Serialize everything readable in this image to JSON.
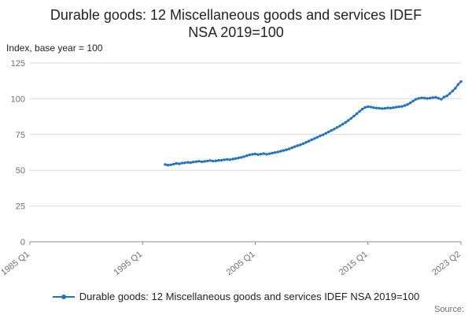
{
  "title": {
    "line1": "Durable goods: 12 Miscellaneous goods and services IDEF",
    "line2": "NSA 2019=100"
  },
  "y_axis_unit": "Index, base year = 100",
  "legend": "Durable goods: 12 Miscellaneous goods and services IDEF NSA 2019=100",
  "source_label": "Source:",
  "colors": {
    "line": "#2073bc",
    "grid": "#d9d9d9",
    "axis": "#8c8c8c",
    "tick_text": "#707071",
    "title_text": "#222222"
  },
  "chart_data": {
    "type": "line",
    "title": "Durable goods: 12 Miscellaneous goods and services IDEF NSA 2019=100",
    "xlabel": "",
    "ylabel": "Index, base year = 100",
    "ylim": [
      0,
      125
    ],
    "yticks": [
      0,
      25,
      50,
      75,
      100,
      125
    ],
    "grid": "horizontal",
    "legend_position": "bottom",
    "x_axis": {
      "start": "1985 Q1",
      "end": "2023 Q2",
      "total_quarters": 153,
      "ticks": [
        {
          "label": "1985 Q1",
          "q": 0
        },
        {
          "label": "1995 Q1",
          "q": 40
        },
        {
          "label": "2005 Q1",
          "q": 80
        },
        {
          "label": "2015 Q1",
          "q": 120
        },
        {
          "label": "2023 Q2",
          "q": 153
        }
      ]
    },
    "series": [
      {
        "name": "Durable goods: 12 Miscellaneous goods and services IDEF NSA 2019=100",
        "frequency": "quarterly",
        "start": "1997 Q1",
        "start_index": 48,
        "values": [
          54.0,
          53.6,
          53.8,
          54.3,
          54.8,
          54.5,
          55.0,
          55.2,
          55.5,
          55.3,
          55.8,
          56.0,
          56.3,
          55.9,
          56.2,
          56.5,
          56.8,
          56.4,
          56.6,
          56.9,
          57.0,
          57.3,
          57.6,
          57.4,
          57.8,
          58.2,
          58.6,
          59.0,
          59.5,
          60.2,
          60.8,
          61.2,
          61.4,
          61.0,
          61.3,
          61.6,
          61.2,
          61.5,
          62.0,
          62.4,
          62.8,
          63.3,
          63.8,
          64.3,
          64.9,
          65.7,
          66.5,
          67.2,
          67.8,
          68.6,
          69.5,
          70.4,
          71.3,
          72.2,
          73.1,
          74.0,
          74.8,
          75.8,
          76.8,
          77.8,
          78.8,
          79.9,
          81.0,
          82.2,
          83.4,
          84.8,
          86.3,
          87.9,
          89.5,
          91.2,
          92.8,
          93.9,
          94.5,
          94.2,
          93.8,
          93.5,
          93.4,
          93.1,
          93.3,
          93.6,
          93.5,
          93.8,
          94.1,
          94.4,
          94.6,
          95.2,
          96.0,
          97.1,
          98.4,
          99.6,
          100.3,
          100.6,
          100.5,
          100.2,
          100.4,
          100.8,
          101.0,
          100.4,
          99.6,
          101.2,
          102.0,
          103.6,
          105.4,
          107.3,
          110.0,
          112.0
        ]
      }
    ]
  }
}
